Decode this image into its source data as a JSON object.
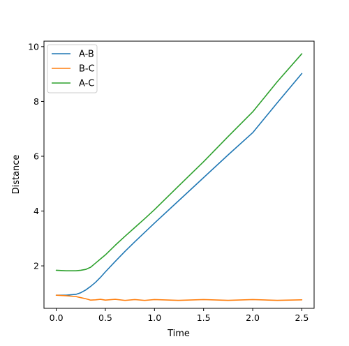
{
  "chart_data": {
    "type": "line",
    "xlabel": "Time",
    "ylabel": "Distance",
    "xlim": [
      -0.125,
      2.625
    ],
    "ylim": [
      0.45,
      10.2
    ],
    "xticks": [
      0.0,
      0.5,
      1.0,
      1.5,
      2.0,
      2.5
    ],
    "xtick_labels": [
      "0.0",
      "0.5",
      "1.0",
      "1.5",
      "2.0",
      "2.5"
    ],
    "yticks": [
      2,
      4,
      6,
      8,
      10
    ],
    "ytick_labels": [
      "2",
      "4",
      "6",
      "8",
      "10"
    ],
    "grid": false,
    "legend_position": "top-left",
    "x": [
      0.0,
      0.1,
      0.2,
      0.25,
      0.3,
      0.35,
      0.4,
      0.45,
      0.5,
      0.6,
      0.7,
      0.8,
      0.9,
      1.0,
      1.25,
      1.5,
      1.75,
      2.0,
      2.25,
      2.5
    ],
    "series": [
      {
        "name": "A-B",
        "color": "#1f77b4",
        "values": [
          0.93,
          0.93,
          0.96,
          1.02,
          1.12,
          1.25,
          1.4,
          1.58,
          1.78,
          2.16,
          2.53,
          2.88,
          3.22,
          3.56,
          4.39,
          5.22,
          6.05,
          6.86,
          7.95,
          9.02
        ]
      },
      {
        "name": "B-C",
        "color": "#ff7f0e",
        "values": [
          0.93,
          0.91,
          0.88,
          0.84,
          0.8,
          0.75,
          0.76,
          0.78,
          0.75,
          0.78,
          0.74,
          0.77,
          0.74,
          0.77,
          0.74,
          0.77,
          0.74,
          0.77,
          0.74,
          0.76
        ]
      },
      {
        "name": "A-C",
        "color": "#2ca02c",
        "values": [
          1.84,
          1.82,
          1.82,
          1.84,
          1.87,
          1.95,
          2.1,
          2.25,
          2.4,
          2.75,
          3.08,
          3.4,
          3.72,
          4.05,
          4.93,
          5.8,
          6.72,
          7.62,
          8.72,
          9.74
        ]
      }
    ]
  }
}
